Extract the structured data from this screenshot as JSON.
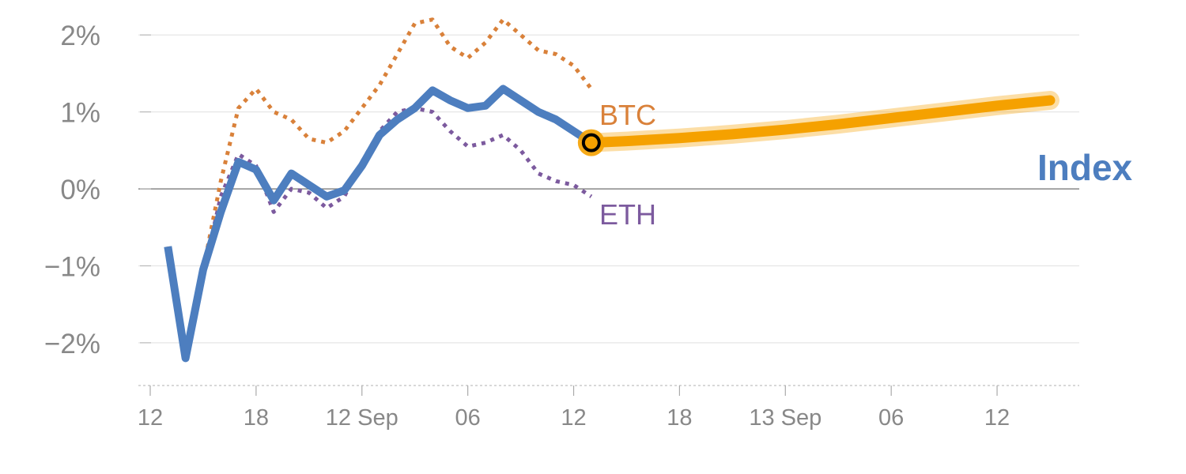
{
  "chart_data": {
    "type": "line",
    "title": "",
    "xlabel": "",
    "ylabel": "",
    "x_unit": "hours",
    "xlim": [
      12,
      63
    ],
    "ylim": [
      -2.35,
      2.3
    ],
    "x_ticks": [
      {
        "x": 12,
        "label": "12"
      },
      {
        "x": 18,
        "label": "18"
      },
      {
        "x": 24,
        "label": "12 Sep"
      },
      {
        "x": 30,
        "label": "06"
      },
      {
        "x": 36,
        "label": "12"
      },
      {
        "x": 42,
        "label": "18"
      },
      {
        "x": 48,
        "label": "13 Sep"
      },
      {
        "x": 54,
        "label": "06"
      },
      {
        "x": 60,
        "label": "12"
      }
    ],
    "y_ticks": [
      {
        "y": 2,
        "label": "2%"
      },
      {
        "y": 1,
        "label": "1%"
      },
      {
        "y": 0,
        "label": "0%"
      },
      {
        "y": -1,
        "label": "−1%"
      },
      {
        "y": -2,
        "label": "−2%"
      }
    ],
    "grid": true,
    "series": [
      {
        "name": "BTC",
        "color": "#d9813a",
        "style": "dotted",
        "x": [
          13,
          14,
          15,
          16,
          17,
          18,
          19,
          20,
          21,
          22,
          23,
          24,
          25,
          26,
          27,
          28,
          29,
          30,
          31,
          32,
          33,
          34,
          35,
          36,
          37
        ],
        "y": [
          -0.75,
          -2.15,
          -1.05,
          0.1,
          1.05,
          1.3,
          1.0,
          0.9,
          0.65,
          0.6,
          0.75,
          1.05,
          1.35,
          1.75,
          2.15,
          2.2,
          1.85,
          1.7,
          1.9,
          2.2,
          2.0,
          1.8,
          1.75,
          1.6,
          1.3
        ]
      },
      {
        "name": "ETH",
        "color": "#7c5a9e",
        "style": "dotted",
        "x": [
          13,
          14,
          15,
          16,
          17,
          18,
          19,
          20,
          21,
          22,
          23,
          24,
          25,
          26,
          27,
          28,
          29,
          30,
          31,
          32,
          33,
          34,
          35,
          36,
          37
        ],
        "y": [
          -0.8,
          -2.2,
          -1.1,
          -0.1,
          0.45,
          0.3,
          -0.3,
          0.0,
          -0.05,
          -0.25,
          -0.1,
          0.35,
          0.75,
          1.0,
          1.05,
          1.0,
          0.75,
          0.55,
          0.6,
          0.7,
          0.5,
          0.2,
          0.1,
          0.05,
          -0.1
        ]
      },
      {
        "name": "Index",
        "color": "#4d7ebf",
        "style": "solid",
        "x": [
          13,
          14,
          15,
          16,
          17,
          18,
          19,
          20,
          21,
          22,
          23,
          24,
          25,
          26,
          27,
          28,
          29,
          30,
          31,
          32,
          33,
          34,
          35,
          36,
          37
        ],
        "y": [
          -0.75,
          -2.2,
          -1.05,
          -0.3,
          0.35,
          0.25,
          -0.15,
          0.2,
          0.05,
          -0.1,
          -0.02,
          0.3,
          0.7,
          0.9,
          1.05,
          1.28,
          1.15,
          1.05,
          1.08,
          1.3,
          1.15,
          1.0,
          0.9,
          0.75,
          0.6
        ]
      }
    ],
    "forecast": {
      "color": "#f5a100",
      "x": [
        37,
        39,
        42,
        45,
        48,
        51,
        54,
        57,
        60,
        63
      ],
      "y": [
        0.6,
        0.62,
        0.66,
        0.71,
        0.77,
        0.84,
        0.92,
        1.0,
        1.08,
        1.15
      ]
    },
    "current_point": {
      "x": 37,
      "y": 0.6
    },
    "labels": {
      "btc": "BTC",
      "eth": "ETH",
      "index": "Index"
    }
  }
}
